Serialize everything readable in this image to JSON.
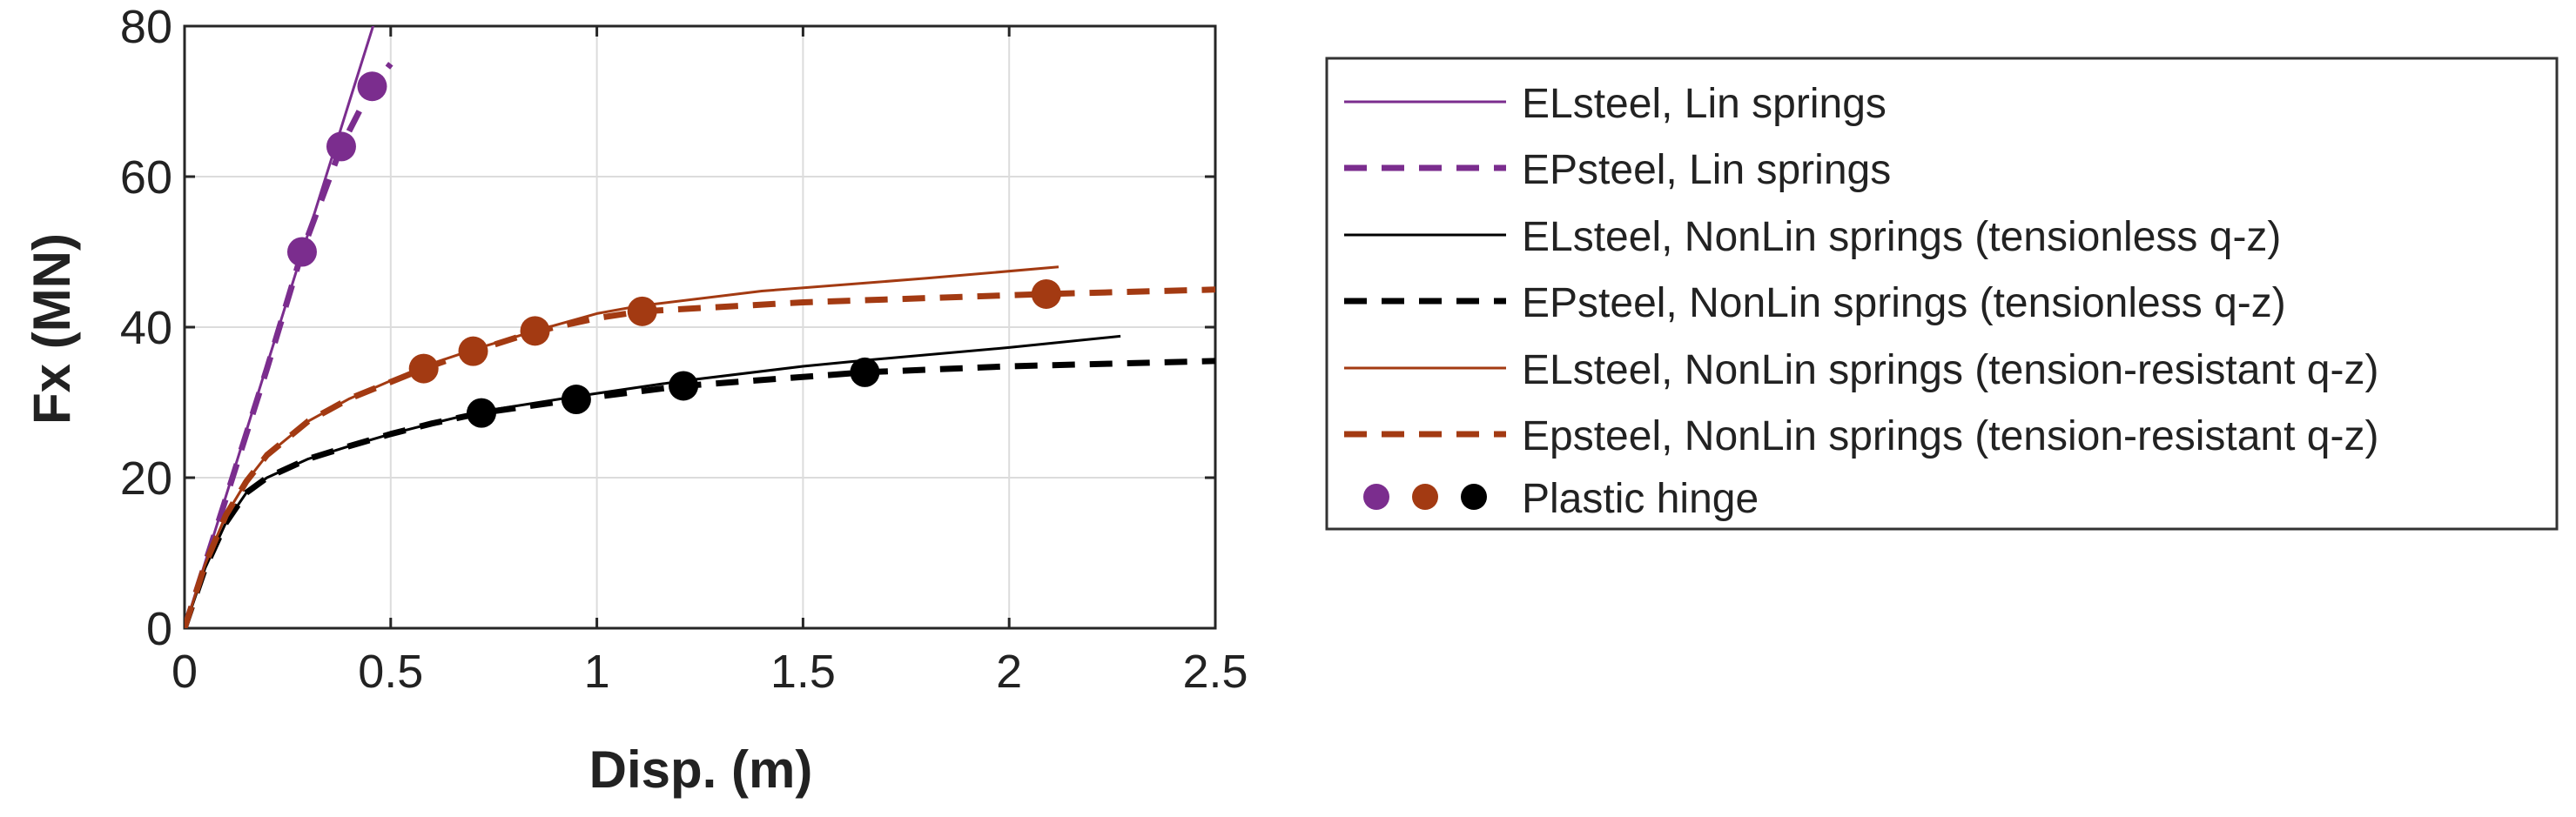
{
  "chart_data": {
    "type": "line",
    "xlabel": "Disp. (m)",
    "ylabel": "Fx (MN)",
    "xlim": [
      0,
      2.5
    ],
    "ylim": [
      0,
      80
    ],
    "xticks": [
      0,
      0.5,
      1,
      1.5,
      2,
      2.5
    ],
    "xtick_labels": [
      "0",
      "0.5",
      "1",
      "1.5",
      "2",
      "2.5"
    ],
    "yticks": [
      0,
      20,
      40,
      60,
      80
    ],
    "ytick_labels": [
      "0",
      "20",
      "40",
      "60",
      "80"
    ],
    "grid": true,
    "legend_position": "outside-right",
    "series": [
      {
        "name": "ELsteel, Lin springs",
        "color": "#7B2D8E",
        "style": "solid",
        "x": [
          0,
          0.1,
          0.2,
          0.3,
          0.4,
          0.46
        ],
        "y": [
          0,
          17.5,
          35,
          52.5,
          70,
          80.5
        ]
      },
      {
        "name": "EPsteel, Lin springs",
        "color": "#7B2D8E",
        "style": "dashed",
        "x": [
          0,
          0.1,
          0.2,
          0.285,
          0.38,
          0.45,
          0.5
        ],
        "y": [
          0,
          17.2,
          34.5,
          50,
          64,
          71.5,
          75
        ]
      },
      {
        "name": "ELsteel, NonLin springs (tensionless q-z)",
        "color": "#000000",
        "style": "solid",
        "x": [
          0,
          0.05,
          0.1,
          0.15,
          0.2,
          0.3,
          0.4,
          0.5,
          0.6,
          0.72,
          0.95,
          1.2,
          1.5,
          1.65,
          2.0,
          2.27
        ],
        "y": [
          0,
          8,
          14,
          18,
          20,
          22.5,
          24.2,
          25.8,
          27.2,
          28.8,
          30.8,
          32.8,
          34.8,
          35.6,
          37.3,
          38.8
        ]
      },
      {
        "name": "EPsteel, NonLin springs (tensionless q-z)",
        "color": "#000000",
        "style": "dashed",
        "x": [
          0,
          0.05,
          0.1,
          0.15,
          0.2,
          0.3,
          0.4,
          0.5,
          0.6,
          0.72,
          0.95,
          1.21,
          1.65,
          2.0,
          2.5
        ],
        "y": [
          0,
          8,
          14,
          18,
          20,
          22.5,
          24.2,
          25.8,
          27.2,
          28.6,
          30.4,
          32.2,
          34.0,
          34.8,
          35.5
        ]
      },
      {
        "name": "ELsteel, NonLin springs (tension-resistant q-z)",
        "color": "#A33A12",
        "style": "solid",
        "x": [
          0,
          0.05,
          0.1,
          0.15,
          0.2,
          0.3,
          0.4,
          0.58,
          0.7,
          0.85,
          1.0,
          1.1,
          1.4,
          1.8,
          2.12
        ],
        "y": [
          0,
          8.5,
          15,
          19.5,
          23,
          27.5,
          30.5,
          34.8,
          37,
          39.5,
          41.8,
          42.8,
          44.8,
          46.5,
          48
        ]
      },
      {
        "name": "Epsteel, NonLin springs (tension-resistant q-z)",
        "color": "#A33A12",
        "style": "dashed",
        "x": [
          0,
          0.05,
          0.1,
          0.15,
          0.2,
          0.3,
          0.4,
          0.58,
          0.7,
          0.85,
          1.0,
          1.11,
          1.5,
          2.09,
          2.5
        ],
        "y": [
          0,
          8.5,
          15,
          19.5,
          23,
          27.5,
          30.5,
          34.5,
          36.8,
          39.4,
          41.2,
          42.1,
          43.3,
          44.4,
          45
        ]
      }
    ],
    "plastic_hinges": {
      "label": "Plastic hinge",
      "groups": [
        {
          "color": "#7B2D8E",
          "points": [
            [
              0.285,
              50
            ],
            [
              0.38,
              64
            ],
            [
              0.455,
              72
            ]
          ]
        },
        {
          "color": "#A33A12",
          "points": [
            [
              0.58,
              34.5
            ],
            [
              0.7,
              36.8
            ],
            [
              0.85,
              39.5
            ],
            [
              1.11,
              42.1
            ],
            [
              2.09,
              44.4
            ]
          ]
        },
        {
          "color": "#000000",
          "points": [
            [
              0.72,
              28.6
            ],
            [
              0.95,
              30.4
            ],
            [
              1.21,
              32.2
            ],
            [
              1.65,
              34.0
            ]
          ]
        }
      ]
    }
  }
}
